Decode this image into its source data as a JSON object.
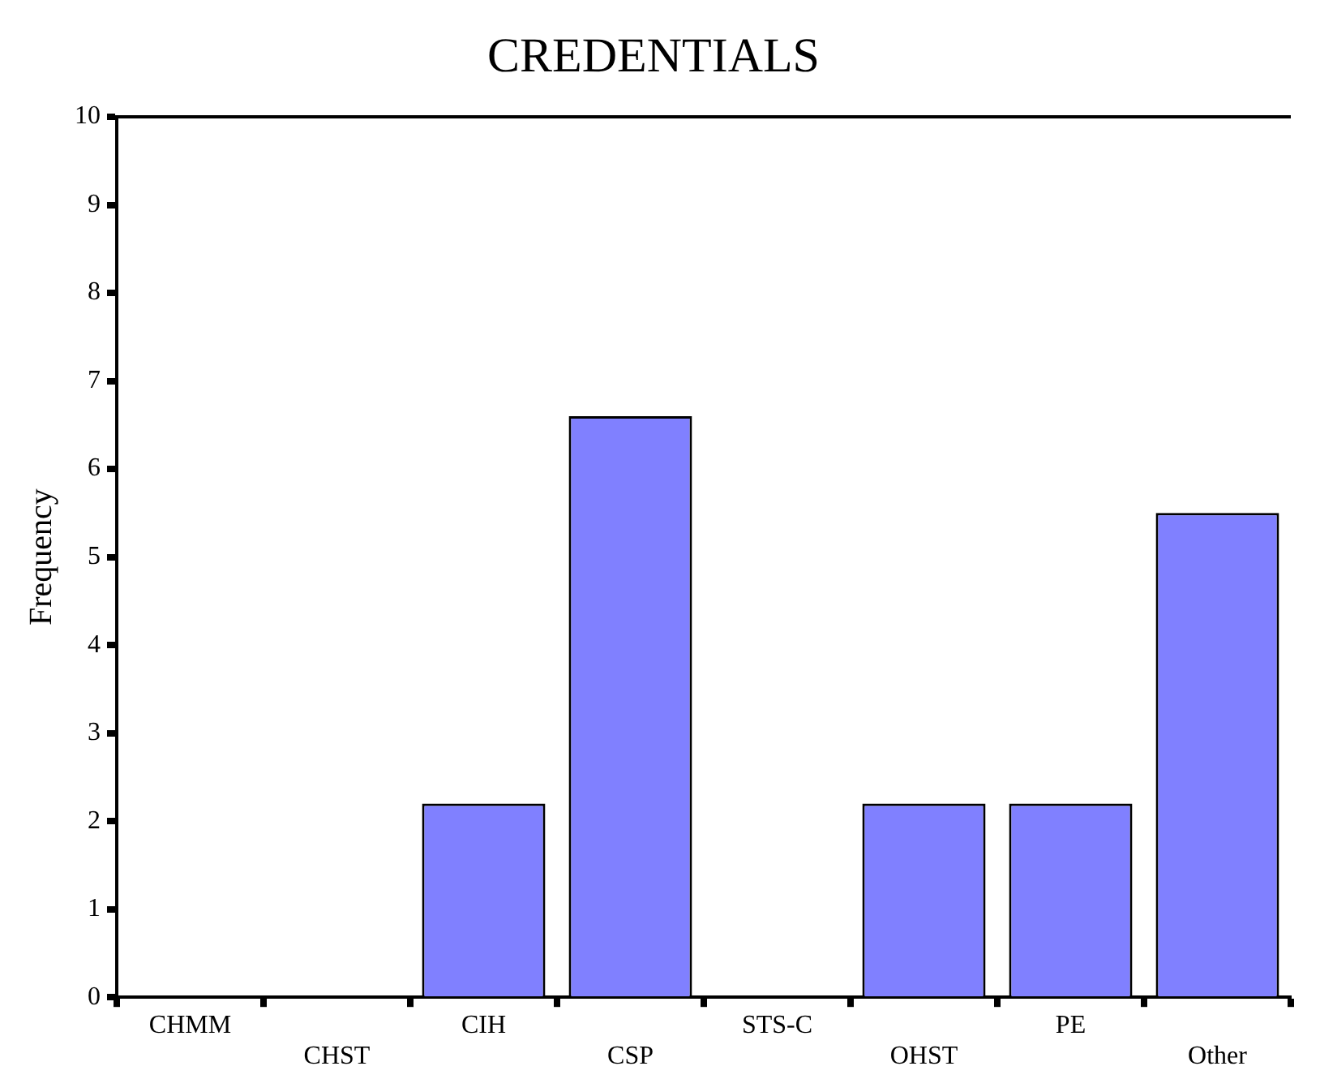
{
  "chart_data": {
    "type": "bar",
    "title": "CREDENTIALS",
    "ylabel": "Frequency",
    "categories": [
      "CHMM",
      "CHST",
      "CIH",
      "CSP",
      "STS-C",
      "OHST",
      "PE",
      "Other"
    ],
    "values": [
      0,
      0,
      2.2,
      6.6,
      0,
      2.2,
      2.2,
      5.5
    ],
    "color": "#8080ff",
    "ylim": [
      0,
      10
    ],
    "yticks": [
      0,
      1,
      2,
      3,
      4,
      5,
      6,
      7,
      8,
      9,
      10
    ],
    "grid": false,
    "legend": false
  }
}
